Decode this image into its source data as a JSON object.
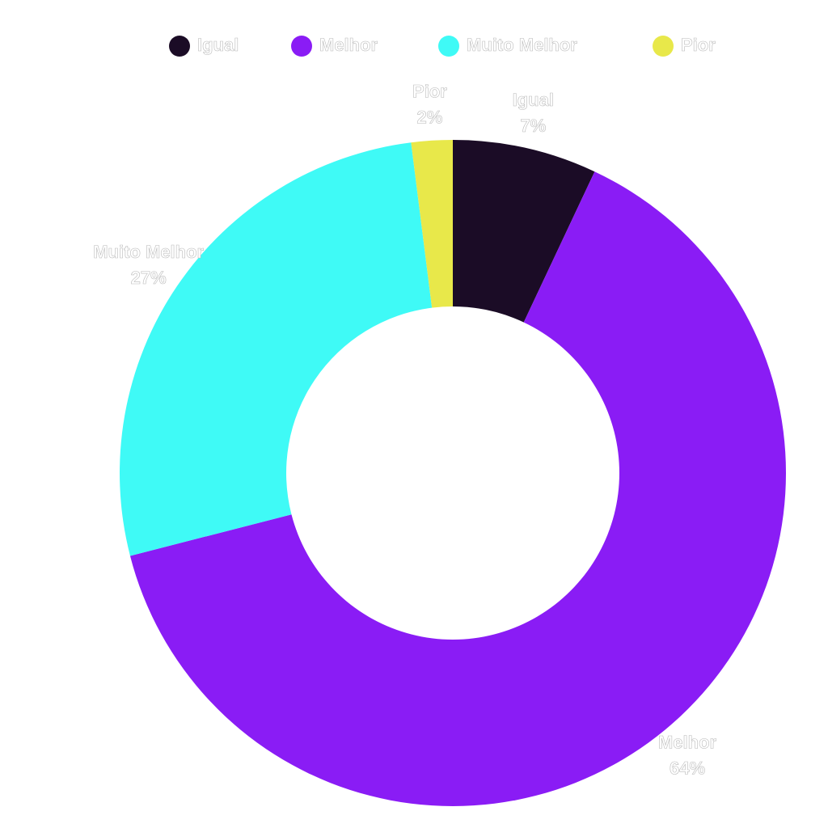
{
  "chart_data": {
    "type": "donut",
    "categories": [
      "Igual",
      "Melhor",
      "Muito Melhor",
      "Pior"
    ],
    "values": [
      7,
      64,
      27,
      2
    ],
    "value_labels": [
      "7%",
      "64%",
      "27%",
      "2%"
    ],
    "colors": [
      "#1b0c26",
      "#8a1cf5",
      "#3ffaf6",
      "#e8e84a"
    ],
    "legend": "top"
  }
}
